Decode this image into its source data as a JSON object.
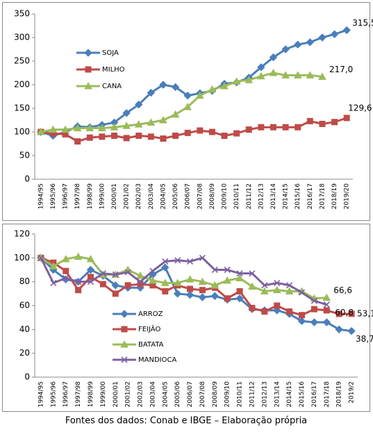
{
  "chart_data": [
    {
      "type": "line",
      "categories": [
        "1994/95",
        "1995/96",
        "1996/97",
        "1997/98",
        "1998/99",
        "1999/00",
        "2000/01",
        "2001/02",
        "2002/03",
        "2003/04",
        "2004/05",
        "2005/06",
        "2006/07",
        "2007/08",
        "2008/09",
        "2009/10",
        "2010/11",
        "2011/12",
        "2012/13",
        "2013/14",
        "2014/15",
        "2015/16",
        "2016/17",
        "2017/18",
        "2018/19",
        "2019/20"
      ],
      "ylim": [
        0,
        350
      ],
      "yticks": [
        0,
        50,
        100,
        150,
        200,
        250,
        300,
        350
      ],
      "series": [
        {
          "name": "SOJA",
          "color": "#4a7ebb",
          "marker": "diamond",
          "values": [
            100,
            92,
            100,
            112,
            110,
            115,
            120,
            140,
            158,
            183,
            200,
            195,
            177,
            182,
            187,
            202,
            205,
            215,
            237,
            258,
            275,
            285,
            290,
            300,
            307,
            315.5
          ],
          "value_labels": [
            null,
            null,
            null,
            null,
            null,
            null,
            null,
            null,
            null,
            null,
            null,
            null,
            null,
            null,
            null,
            null,
            null,
            null,
            null,
            null,
            null,
            null,
            null,
            null,
            null,
            "315,5"
          ]
        },
        {
          "name": "MILHO",
          "color": "#be4b48",
          "marker": "square",
          "values": [
            100,
            97,
            95,
            80,
            88,
            90,
            92,
            87,
            92,
            90,
            86,
            92,
            98,
            103,
            100,
            92,
            97,
            105,
            110,
            110,
            110,
            110,
            123,
            117,
            121,
            129.6
          ],
          "value_labels": [
            null,
            null,
            null,
            null,
            null,
            null,
            null,
            null,
            null,
            null,
            null,
            null,
            null,
            null,
            null,
            null,
            null,
            null,
            null,
            null,
            null,
            null,
            null,
            null,
            null,
            "129,6"
          ]
        },
        {
          "name": "CANA",
          "color": "#9bbb59",
          "marker": "triangle",
          "values": [
            100,
            105,
            105,
            108,
            108,
            108,
            110,
            113,
            116,
            120,
            125,
            137,
            153,
            177,
            190,
            197,
            207,
            210,
            218,
            225,
            220,
            220,
            220,
            217,
            null,
            null
          ],
          "value_labels": [
            null,
            null,
            null,
            null,
            null,
            null,
            null,
            null,
            null,
            null,
            null,
            null,
            null,
            null,
            null,
            null,
            null,
            null,
            null,
            null,
            null,
            null,
            null,
            "217,0",
            null,
            null
          ]
        }
      ]
    },
    {
      "type": "line",
      "categories": [
        "1994/95",
        "1995/96",
        "1996/97",
        "1997/98",
        "1998/99",
        "1999/00",
        "2000/01",
        "2001/02",
        "2002/03",
        "2003/04",
        "2004/05",
        "2005/06",
        "2006/07",
        "2007/08",
        "2008/09",
        "2009/10",
        "2010/11",
        "2011/12",
        "2012/13",
        "2013/14",
        "2014/15",
        "2015/16",
        "2016/17",
        "2017/18",
        "2018/19",
        "2019/2"
      ],
      "ylim": [
        0,
        120
      ],
      "yticks": [
        0,
        20,
        40,
        60,
        80,
        100,
        120
      ],
      "series": [
        {
          "name": "ARROZ",
          "color": "#4a7ebb",
          "marker": "diamond",
          "values": [
            100,
            90,
            82,
            80,
            90,
            85,
            77,
            75,
            75,
            86,
            92,
            70,
            69,
            67,
            68,
            65,
            66,
            57,
            56,
            56,
            53,
            47,
            46,
            46,
            40,
            38.7
          ],
          "value_labels": [
            null,
            null,
            null,
            null,
            null,
            null,
            null,
            null,
            null,
            null,
            null,
            null,
            null,
            null,
            null,
            null,
            null,
            null,
            null,
            null,
            null,
            null,
            null,
            null,
            null,
            "38,7"
          ]
        },
        {
          "name": "FEIJÃO",
          "color": "#be4b48",
          "marker": "square",
          "values": [
            100,
            96,
            89,
            73,
            84,
            78,
            70,
            77,
            78,
            77,
            72,
            77,
            74,
            73,
            75,
            66,
            72,
            58,
            55,
            60,
            55,
            52,
            57,
            56,
            53,
            53.1
          ],
          "value_labels": [
            null,
            null,
            null,
            null,
            null,
            null,
            null,
            null,
            null,
            null,
            null,
            null,
            null,
            null,
            null,
            null,
            null,
            null,
            null,
            null,
            null,
            null,
            null,
            null,
            null,
            "53,1"
          ]
        },
        {
          "name": "BATATA",
          "color": "#9bbb59",
          "marker": "triangle",
          "values": [
            100,
            93,
            99,
            101,
            99,
            86,
            86,
            90,
            85,
            81,
            79,
            79,
            82,
            80,
            77,
            81,
            83,
            76,
            72,
            73,
            72,
            72,
            66,
            66.6,
            null,
            null
          ],
          "value_labels": [
            null,
            null,
            null,
            null,
            null,
            null,
            null,
            null,
            null,
            null,
            null,
            null,
            null,
            null,
            null,
            null,
            null,
            null,
            null,
            null,
            null,
            null,
            null,
            "66,6",
            null,
            null
          ]
        },
        {
          "name": "MANDIOCA",
          "color": "#7d60a0",
          "marker": "x",
          "values": [
            100,
            79,
            83,
            80,
            80,
            87,
            86,
            88,
            80,
            89,
            97,
            98,
            97,
            100,
            90,
            90,
            87,
            87,
            77,
            79,
            77,
            71,
            64,
            60.8,
            null,
            null
          ],
          "value_labels": [
            null,
            null,
            null,
            null,
            null,
            null,
            null,
            null,
            null,
            null,
            null,
            null,
            null,
            null,
            null,
            null,
            null,
            null,
            null,
            null,
            null,
            null,
            null,
            "60,8",
            null,
            null
          ]
        }
      ]
    }
  ],
  "footer": "Fontes dos dados: Conab e IBGE – Elaboração própria"
}
